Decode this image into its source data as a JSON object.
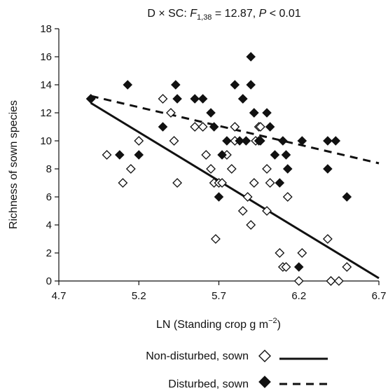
{
  "chart_data": {
    "type": "scatter",
    "title": {
      "prefix": "D × SC: ",
      "f_symbol": "F",
      "f_subscript": "1,38",
      "f_value": " = 12.87, ",
      "p_symbol": "P",
      "p_value": " < 0.01"
    },
    "xlabel": {
      "main": "LN (Standing crop g m",
      "superscript": "−2",
      "close": ")"
    },
    "ylabel": "Richness of sown species",
    "xlim": [
      4.7,
      6.7
    ],
    "ylim": [
      0,
      18
    ],
    "x_ticks": [
      "4.7",
      "5.2",
      "5.7",
      "6.2",
      "6.7"
    ],
    "y_ticks": [
      "0",
      "2",
      "4",
      "6",
      "8",
      "10",
      "12",
      "14",
      "16",
      "18"
    ],
    "grid": false,
    "legend_position": "bottom",
    "series": [
      {
        "name": "Non-disturbed, sown",
        "marker": "open-diamond",
        "line_style": "solid",
        "fit": {
          "x": [
            4.9,
            6.7
          ],
          "y": [
            12.7,
            0.2
          ]
        },
        "x": [
          4.9,
          5.1,
          5.0,
          5.15,
          5.2,
          5.35,
          5.4,
          5.42,
          5.44,
          5.55,
          5.6,
          5.62,
          5.65,
          5.67,
          5.68,
          5.7,
          5.72,
          5.75,
          5.78,
          5.8,
          5.8,
          5.85,
          5.88,
          5.9,
          5.92,
          5.93,
          5.95,
          5.96,
          6.0,
          6.0,
          6.02,
          6.08,
          6.1,
          6.12,
          6.13,
          6.2,
          6.22,
          6.38,
          6.4,
          6.4,
          6.45,
          6.5
        ],
        "y": [
          13,
          7,
          9,
          8,
          10,
          13,
          12,
          10,
          7,
          11,
          11,
          9,
          8,
          7,
          3,
          7,
          7,
          9,
          8,
          10,
          11,
          5,
          6,
          4,
          7,
          10,
          11,
          11,
          8,
          5,
          7,
          2,
          1,
          1,
          6,
          0,
          2,
          3,
          0,
          0,
          0,
          1
        ]
      },
      {
        "name": "Disturbed, sown",
        "marker": "filled-diamond",
        "line_style": "dashed",
        "fit": {
          "x": [
            4.9,
            6.7
          ],
          "y": [
            13.2,
            8.4
          ]
        },
        "x": [
          4.9,
          5.08,
          5.13,
          5.2,
          5.35,
          5.43,
          5.44,
          5.55,
          5.6,
          5.65,
          5.67,
          5.7,
          5.72,
          5.75,
          5.8,
          5.83,
          5.85,
          5.85,
          5.87,
          5.9,
          5.9,
          5.92,
          5.92,
          5.95,
          5.96,
          6.0,
          6.02,
          6.05,
          6.08,
          6.1,
          6.12,
          6.13,
          6.2,
          6.22,
          6.38,
          6.38,
          6.43,
          6.5
        ],
        "y": [
          13,
          9,
          14,
          9,
          11,
          14,
          13,
          13,
          13,
          12,
          11,
          6,
          9,
          10,
          14,
          10,
          13,
          13,
          10,
          14,
          16,
          12,
          12,
          10,
          10,
          12,
          11,
          9,
          7,
          10,
          9,
          8,
          1,
          10,
          8,
          10,
          10,
          6
        ]
      }
    ]
  }
}
